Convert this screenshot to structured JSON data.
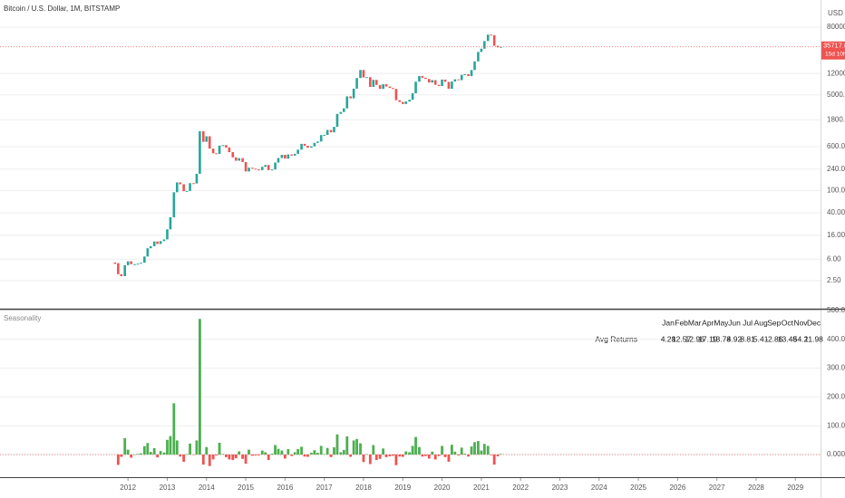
{
  "chart_data": [
    {
      "type": "candlestick",
      "title": "Bitcoin / U.S. Dollar, 1M, BITSTAMP",
      "unit": "USD",
      "price_timer": "15d 10h",
      "log": true,
      "grid": true,
      "up_color": "#26a69a",
      "down_color": "#ef5350",
      "xlim": [
        2008.74,
        2029.64
      ],
      "ylim": [
        0.82,
        242700
      ],
      "yticks": [
        {
          "value": 2.5,
          "label": "2.50"
        },
        {
          "value": 6,
          "label": "6.00"
        },
        {
          "value": 16,
          "label": "16.00"
        },
        {
          "value": 40,
          "label": "40.00"
        },
        {
          "value": 100,
          "label": "100.00"
        },
        {
          "value": 240,
          "label": "240.00"
        },
        {
          "value": 600,
          "label": "600.00"
        },
        {
          "value": 1800,
          "label": "1800.00"
        },
        {
          "value": 5000,
          "label": "5000.00"
        },
        {
          "value": 12000,
          "label": "12000.00"
        },
        {
          "value": 80000,
          "label": "80000.00"
        }
      ],
      "x": [
        2011.67,
        2011.75,
        2011.83,
        2011.92,
        2012,
        2012.08,
        2012.17,
        2012.25,
        2012.33,
        2012.42,
        2012.5,
        2012.58,
        2012.67,
        2012.75,
        2012.83,
        2012.92,
        2013,
        2013.08,
        2013.17,
        2013.25,
        2013.33,
        2013.42,
        2013.5,
        2013.58,
        2013.67,
        2013.75,
        2013.83,
        2013.92,
        2014,
        2014.08,
        2014.17,
        2014.25,
        2014.33,
        2014.42,
        2014.5,
        2014.58,
        2014.67,
        2014.75,
        2014.83,
        2014.92,
        2015,
        2015.08,
        2015.17,
        2015.25,
        2015.33,
        2015.42,
        2015.5,
        2015.58,
        2015.67,
        2015.75,
        2015.83,
        2015.92,
        2016,
        2016.08,
        2016.17,
        2016.25,
        2016.33,
        2016.42,
        2016.5,
        2016.58,
        2016.67,
        2016.75,
        2016.83,
        2016.92,
        2017,
        2017.08,
        2017.17,
        2017.25,
        2017.33,
        2017.42,
        2017.5,
        2017.58,
        2017.67,
        2017.75,
        2017.83,
        2017.92,
        2018,
        2018.08,
        2018.17,
        2018.25,
        2018.33,
        2018.42,
        2018.5,
        2018.58,
        2018.67,
        2018.75,
        2018.83,
        2018.92,
        2019,
        2019.08,
        2019.17,
        2019.25,
        2019.33,
        2019.42,
        2019.5,
        2019.58,
        2019.67,
        2019.75,
        2019.83,
        2019.92,
        2020,
        2020.08,
        2020.17,
        2020.25,
        2020.33,
        2020.42,
        2020.5,
        2020.58,
        2020.67,
        2020.75,
        2020.83,
        2020.92,
        2021,
        2021.08,
        2021.17,
        2021.25,
        2021.33,
        2021.42,
        2021.5
      ],
      "values": [
        5.1,
        3.25,
        3.0,
        4.7,
        5.5,
        4.9,
        4.9,
        5.0,
        5.2,
        6.7,
        9.4,
        10.2,
        12.4,
        11.2,
        12.6,
        13.5,
        20.4,
        33.4,
        93,
        139,
        129,
        97,
        98,
        135,
        133,
        198,
        1130,
        732,
        920,
        555,
        458,
        446,
        628,
        640,
        580,
        480,
        387,
        338,
        375,
        320,
        218,
        254,
        244,
        236,
        230,
        263,
        284,
        230,
        236,
        313,
        377,
        430,
        368,
        437,
        416,
        448,
        531,
        673,
        624,
        575,
        609,
        701,
        742,
        964,
        970,
        1190,
        1080,
        1350,
        2300,
        2480,
        2875,
        4700,
        4340,
        6450,
        9950,
        13850,
        10200,
        10330,
        6930,
        9240,
        7500,
        6390,
        7730,
        7030,
        6630,
        6370,
        4020,
        3740,
        3440,
        3810,
        4100,
        5330,
        8560,
        10820,
        10080,
        9590,
        8290,
        9150,
        7550,
        7190,
        9350,
        8520,
        6410,
        8620,
        9450,
        9140,
        11350,
        11650,
        10780,
        13800,
        19700,
        28990,
        33110,
        45240,
        58800,
        57720,
        37300,
        35040,
        35717.89
      ]
    },
    {
      "type": "histogram",
      "title": "Seasonality",
      "grid": true,
      "up_color": "#4caf50",
      "down_color": "#ef5350",
      "xlim": [
        2008.74,
        2029.64
      ],
      "ylim": [
        -78.6,
        500
      ],
      "xticks": [
        2012,
        2013,
        2014,
        2015,
        2016,
        2017,
        2018,
        2019,
        2020,
        2021,
        2022,
        2023,
        2024,
        2025,
        2026,
        2027,
        2028,
        2029
      ],
      "yticks": [
        {
          "value": 0,
          "label": "0.000"
        },
        {
          "value": 100,
          "label": "100.000"
        },
        {
          "value": 200,
          "label": "200.000"
        },
        {
          "value": 300,
          "label": "300.000"
        },
        {
          "value": 400,
          "label": "400.000"
        },
        {
          "value": 500,
          "label": "500.000"
        }
      ],
      "x": [
        2011.75,
        2011.83,
        2011.92,
        2012,
        2012.08,
        2012.17,
        2012.25,
        2012.33,
        2012.42,
        2012.5,
        2012.58,
        2012.67,
        2012.75,
        2012.83,
        2012.92,
        2013,
        2013.08,
        2013.17,
        2013.25,
        2013.33,
        2013.42,
        2013.5,
        2013.58,
        2013.67,
        2013.75,
        2013.83,
        2013.92,
        2014,
        2014.08,
        2014.17,
        2014.25,
        2014.33,
        2014.42,
        2014.5,
        2014.58,
        2014.67,
        2014.75,
        2014.83,
        2014.92,
        2015,
        2015.08,
        2015.17,
        2015.25,
        2015.33,
        2015.42,
        2015.5,
        2015.58,
        2015.67,
        2015.75,
        2015.83,
        2015.92,
        2016,
        2016.08,
        2016.17,
        2016.25,
        2016.33,
        2016.42,
        2016.5,
        2016.58,
        2016.67,
        2016.75,
        2016.83,
        2016.92,
        2017,
        2017.08,
        2017.17,
        2017.25,
        2017.33,
        2017.42,
        2017.5,
        2017.58,
        2017.67,
        2017.75,
        2017.83,
        2017.92,
        2018,
        2018.08,
        2018.17,
        2018.25,
        2018.33,
        2018.42,
        2018.5,
        2018.58,
        2018.67,
        2018.75,
        2018.83,
        2018.92,
        2019,
        2019.08,
        2019.17,
        2019.25,
        2019.33,
        2019.42,
        2019.5,
        2019.58,
        2019.67,
        2019.75,
        2019.83,
        2019.92,
        2020,
        2020.08,
        2020.17,
        2020.25,
        2020.33,
        2020.42,
        2020.5,
        2020.58,
        2020.67,
        2020.75,
        2020.83,
        2020.92,
        2021,
        2021.08,
        2021.17,
        2021.25,
        2021.33,
        2021.42,
        2021.5
      ],
      "values": [
        -36,
        -8,
        57,
        17,
        -11,
        0,
        2,
        4,
        29,
        40,
        9,
        22,
        -10,
        12,
        7,
        51,
        64,
        178,
        49,
        -7,
        -25,
        1,
        38,
        -1,
        49,
        471,
        -35,
        26,
        -40,
        -17,
        -3,
        41,
        2,
        -9,
        -17,
        -19,
        -13,
        11,
        -15,
        -32,
        17,
        -4,
        -3,
        -3,
        14,
        8,
        -19,
        3,
        33,
        20,
        14,
        -14,
        19,
        -5,
        8,
        19,
        27,
        -7,
        -8,
        6,
        15,
        6,
        30,
        1,
        23,
        -9,
        25,
        70,
        8,
        16,
        63,
        -8,
        49,
        54,
        39,
        -26,
        1,
        -33,
        33,
        -19,
        -15,
        21,
        -9,
        -6,
        -4,
        -37,
        -7,
        -8,
        11,
        8,
        30,
        61,
        26,
        -7,
        -5,
        -14,
        10,
        -17,
        -5,
        30,
        -9,
        -25,
        34,
        10,
        -3,
        24,
        3,
        -7,
        28,
        43,
        47,
        14,
        37,
        30,
        -2,
        -35,
        -6,
        2
      ]
    }
  ],
  "seasonality_table": {
    "months": [
      "Jan",
      "Feb",
      "Mar",
      "Apr",
      "May",
      "Jun",
      "Jul",
      "Aug",
      "Sep",
      "Oct",
      "Nov",
      "Dec"
    ],
    "label": "Avg Returns",
    "values": [
      4.28,
      12.57,
      12.96,
      17.19,
      13.78,
      4.92,
      8.81,
      5.41,
      -2.86,
      13.48,
      54.2,
      11.98
    ]
  }
}
